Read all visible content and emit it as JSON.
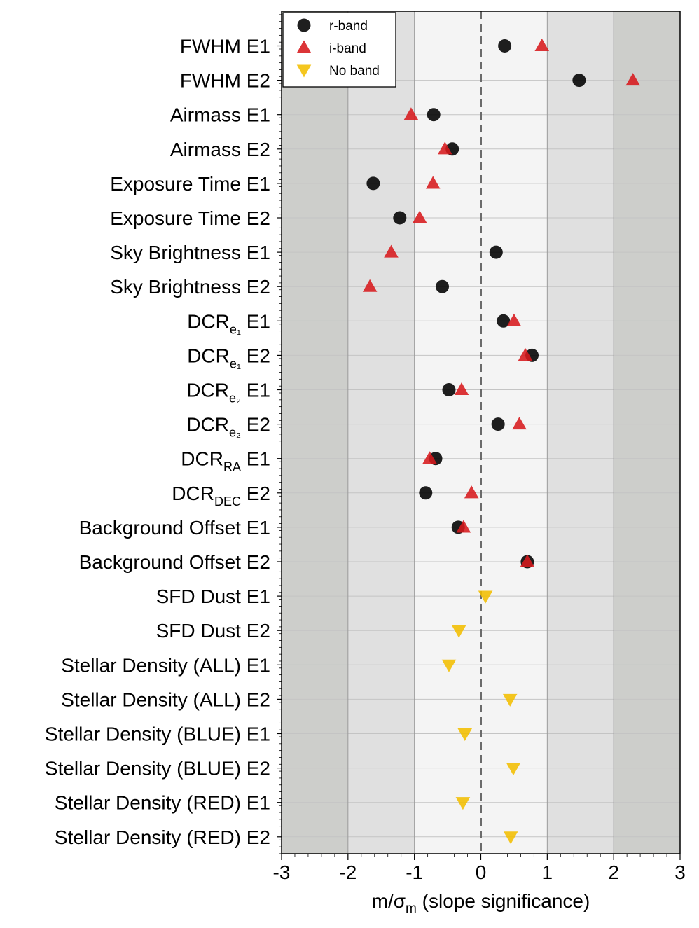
{
  "chart_data": {
    "type": "scatter",
    "orientation": "horizontal-categories",
    "categories": [
      {
        "base": "FWHM",
        "sub": "",
        "suffix": " E1"
      },
      {
        "base": "FWHM",
        "sub": "",
        "suffix": " E2"
      },
      {
        "base": "Airmass",
        "sub": "",
        "suffix": " E1"
      },
      {
        "base": "Airmass",
        "sub": "",
        "suffix": " E2"
      },
      {
        "base": "Exposure Time",
        "sub": "",
        "suffix": " E1"
      },
      {
        "base": "Exposure Time",
        "sub": "",
        "suffix": " E2"
      },
      {
        "base": "Sky Brightness",
        "sub": "",
        "suffix": " E1"
      },
      {
        "base": "Sky Brightness",
        "sub": "",
        "suffix": " E2"
      },
      {
        "base": "DCR",
        "sub": "e₁",
        "suffix": " E1"
      },
      {
        "base": "DCR",
        "sub": "e₁",
        "suffix": " E2"
      },
      {
        "base": "DCR",
        "sub": "e₂",
        "suffix": " E1"
      },
      {
        "base": "DCR",
        "sub": "e₂",
        "suffix": " E2"
      },
      {
        "base": "DCR",
        "sub": "RA",
        "suffix": " E1"
      },
      {
        "base": "DCR",
        "sub": "DEC",
        "suffix": " E2"
      },
      {
        "base": "Background Offset",
        "sub": "",
        "suffix": " E1"
      },
      {
        "base": "Background Offset",
        "sub": "",
        "suffix": " E2"
      },
      {
        "base": "SFD Dust",
        "sub": "",
        "suffix": " E1"
      },
      {
        "base": "SFD Dust",
        "sub": "",
        "suffix": " E2"
      },
      {
        "base": "Stellar Density (ALL)",
        "sub": "",
        "suffix": " E1"
      },
      {
        "base": "Stellar Density (ALL)",
        "sub": "",
        "suffix": " E2"
      },
      {
        "base": "Stellar Density (BLUE)",
        "sub": "",
        "suffix": " E1"
      },
      {
        "base": "Stellar Density (BLUE)",
        "sub": "",
        "suffix": " E2"
      },
      {
        "base": "Stellar Density (RED)",
        "sub": "",
        "suffix": " E1"
      },
      {
        "base": "Stellar Density (RED)",
        "sub": "",
        "suffix": " E2"
      }
    ],
    "series": [
      {
        "name": "r-band",
        "marker": "circle",
        "color": "#000000",
        "values": [
          0.36,
          1.48,
          -0.71,
          -0.43,
          -1.62,
          -1.22,
          0.23,
          -0.58,
          0.34,
          0.77,
          -0.48,
          0.26,
          -0.68,
          -0.83,
          -0.34,
          0.7,
          null,
          null,
          null,
          null,
          null,
          null,
          null,
          null
        ]
      },
      {
        "name": "i-band",
        "marker": "triangle-up",
        "color": "#d7191c",
        "values": [
          0.92,
          2.29,
          -1.05,
          -0.54,
          -0.72,
          -0.92,
          -1.35,
          -1.67,
          0.5,
          0.67,
          -0.29,
          0.58,
          -0.77,
          -0.14,
          -0.26,
          0.7,
          null,
          null,
          null,
          null,
          null,
          null,
          null,
          null
        ]
      },
      {
        "name": "No band",
        "marker": "triangle-down",
        "color": "#f2be00",
        "values": [
          null,
          null,
          null,
          null,
          null,
          null,
          null,
          null,
          null,
          null,
          null,
          null,
          null,
          null,
          null,
          null,
          0.07,
          -0.33,
          -0.48,
          0.44,
          -0.24,
          0.49,
          -0.27,
          0.45
        ]
      }
    ],
    "xlim": [
      -3,
      3
    ],
    "xticks": [
      "-3",
      "-2",
      "-1",
      "0",
      "1",
      "2",
      "3"
    ],
    "xlabel": "m/σ",
    "xlabel_sub": "m",
    "xlabel_rest": " (slope significance)",
    "legend_position": "top-left",
    "bands": [
      {
        "from": -3,
        "to": -2,
        "color": "#cdcecb"
      },
      {
        "from": -2,
        "to": -1,
        "color": "#e0e0e0"
      },
      {
        "from": -1,
        "to": 1,
        "color": "#f4f4f4"
      },
      {
        "from": 1,
        "to": 2,
        "color": "#e0e0e0"
      },
      {
        "from": 2,
        "to": 3,
        "color": "#cdcecb"
      }
    ],
    "reference_line": 0,
    "grid_y": true
  }
}
